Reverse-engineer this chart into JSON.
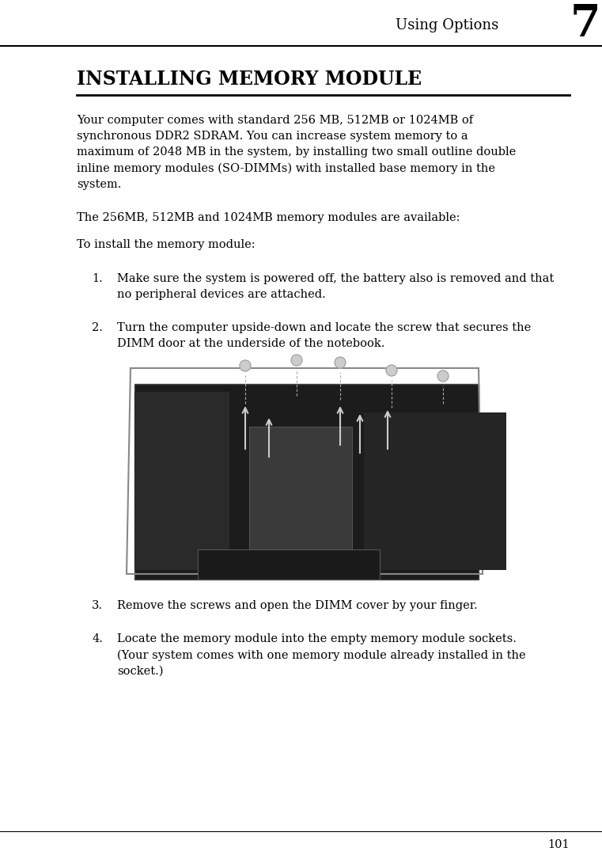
{
  "page_width": 7.61,
  "page_height": 10.8,
  "bg_color": "#ffffff",
  "header_text": "Using Options",
  "header_number": "7",
  "section_title": "INSTALLING MEMORY MODULE",
  "body_text_1": "Your computer comes with standard 256 MB, 512MB or 1024MB of\nsynchronous DDR2 SDRAM. You can increase system memory to a\nmaximum of 2048 MB in the system, by installing two small outline double\ninline memory modules (SO-DIMMs) with installed base memory in the\nsystem.",
  "body_text_2": "The 256MB, 512MB and 1024MB memory modules are available:",
  "body_text_3": "To install the memory module:",
  "list_item_1_num": "1.",
  "list_item_1": "Make sure the system is powered off, the battery also is removed and that\nno peripheral devices are attached.",
  "list_item_2_num": "2.",
  "list_item_2": "Turn the computer upside-down and locate the screw that secures the\nDIMM door at the underside of the notebook.",
  "list_item_3_num": "3.",
  "list_item_3": "Remove the screws and open the DIMM cover by your finger.",
  "list_item_4_num": "4.",
  "list_item_4": "Locate the memory module into the empty memory module sockets.\n(Your system comes with one memory module already installed in the\nsocket.)",
  "footer_text": "101",
  "text_color": "#000000",
  "body_fontsize": 10.5,
  "header_fontsize": 13,
  "section_title_fontsize": 17,
  "number_fontsize": 40,
  "list_num_fontsize": 10.5
}
